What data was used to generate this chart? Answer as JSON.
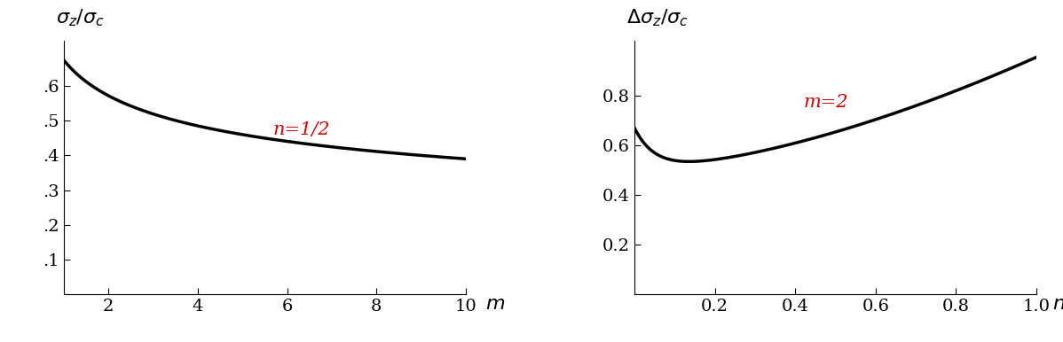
{
  "left_xlabel": "m",
  "left_label": "n=1/2",
  "left_xlim": [
    1,
    10
  ],
  "left_ylim": [
    0.0,
    0.73
  ],
  "left_xticks": [
    2,
    4,
    6,
    8,
    10
  ],
  "left_yticks": [
    0.1,
    0.2,
    0.3,
    0.4,
    0.5,
    0.6
  ],
  "left_yticklabels": [
    ".1",
    ".2",
    ".3",
    ".4",
    ".5",
    ".6"
  ],
  "right_xlabel": "n",
  "right_label": "m=2",
  "right_xlim": [
    0,
    1.0
  ],
  "right_ylim": [
    0.0,
    1.02
  ],
  "right_xticks": [
    0.2,
    0.4,
    0.6,
    0.8,
    1.0
  ],
  "right_yticks": [
    0.2,
    0.4,
    0.6,
    0.8
  ],
  "line_color": "#000000",
  "line_width": 2.5,
  "label_color": "#cc0000",
  "label_fontsize": 15,
  "tick_fontsize": 14,
  "ylabel_fontsize": 16,
  "xlabel_fontsize": 16,
  "background_color": "#ffffff"
}
